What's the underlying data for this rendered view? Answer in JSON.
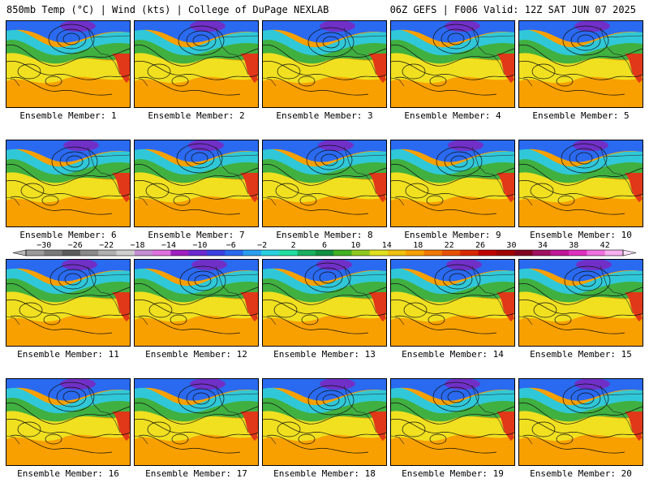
{
  "header": {
    "title_left": "850mb Temp (°C) | Wind (kts) | College of DuPage NEXLAB",
    "title_right": "06Z GEFS | F006 Valid: 12Z SAT JUN 07 2025"
  },
  "members": [
    {
      "label": "Ensemble Member: 1"
    },
    {
      "label": "Ensemble Member: 2"
    },
    {
      "label": "Ensemble Member: 3"
    },
    {
      "label": "Ensemble Member: 4"
    },
    {
      "label": "Ensemble Member: 5"
    },
    {
      "label": "Ensemble Member: 6"
    },
    {
      "label": "Ensemble Member: 7"
    },
    {
      "label": "Ensemble Member: 8"
    },
    {
      "label": "Ensemble Member: 9"
    },
    {
      "label": "Ensemble Member: 10"
    },
    {
      "label": "Ensemble Member: 11"
    },
    {
      "label": "Ensemble Member: 12"
    },
    {
      "label": "Ensemble Member: 13"
    },
    {
      "label": "Ensemble Member: 14"
    },
    {
      "label": "Ensemble Member: 15"
    },
    {
      "label": "Ensemble Member: 16"
    },
    {
      "label": "Ensemble Member: 17"
    },
    {
      "label": "Ensemble Member: 18"
    },
    {
      "label": "Ensemble Member: 19"
    },
    {
      "label": "Ensemble Member: 20"
    }
  ],
  "colorbar": {
    "tick_labels": [
      "−30",
      "−26",
      "−22",
      "−18",
      "−14",
      "−10",
      "−6",
      "−2",
      "2",
      "6",
      "10",
      "14",
      "18",
      "22",
      "26",
      "30",
      "34",
      "38",
      "42"
    ],
    "colors": [
      "#9a9a9a",
      "#7a7a7a",
      "#5c5c5c",
      "#8a8a8a",
      "#b0b0b0",
      "#cfcfcf",
      "#c58fd4",
      "#e070e0",
      "#a020c0",
      "#6a2ad0",
      "#3a40e0",
      "#2a6af0",
      "#2a9ef0",
      "#2ad0e0",
      "#20e0a0",
      "#18b060",
      "#109040",
      "#40b020",
      "#90c820",
      "#e0e020",
      "#f0c010",
      "#f8a000",
      "#f07800",
      "#e85000",
      "#d82800",
      "#c00000",
      "#a00000",
      "#800020",
      "#a01060",
      "#c01898",
      "#e030c0",
      "#f070e0",
      "#f8b0f0"
    ]
  },
  "map_colors": {
    "north_purple": "#7030c8",
    "north_blue": "#2a6af0",
    "teal": "#30c8d8",
    "green": "#40b040",
    "yellow": "#f0e020",
    "orange": "#f8a000",
    "hot_red": "#e03818"
  }
}
